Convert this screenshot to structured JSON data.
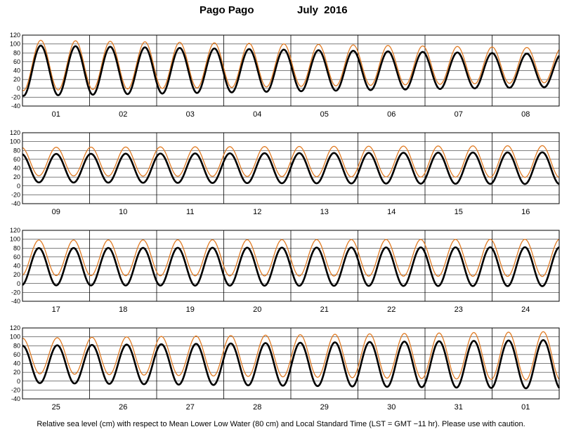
{
  "header": {
    "location": "Pago Pago",
    "period": "July   2016"
  },
  "footer_note": "Relative sea level (cm) with respect to Mean Lower Low Water (80 cm) and Local Standard Time (LST = GMT −11 hr). Please use with caution.",
  "colors": {
    "observed": "#000000",
    "predicted": "#e07b24",
    "grid": "#000000",
    "background": "#ffffff"
  },
  "chart_data": [
    {
      "type": "line",
      "x_tick_labels": [
        "01",
        "02",
        "03",
        "04",
        "05",
        "06",
        "07",
        "08"
      ],
      "y_ticks": [
        120,
        100,
        80,
        60,
        40,
        20,
        0,
        -20,
        -40
      ],
      "ylim": [
        -40,
        120
      ],
      "grid": true,
      "series": [
        {
          "mean": 40,
          "amp_start": 57,
          "amp_end": 37,
          "phase_deg": -100
        },
        {
          "mean": 52,
          "amp_start": 57,
          "amp_end": 39,
          "phase_deg": -100
        }
      ]
    },
    {
      "type": "line",
      "x_tick_labels": [
        "09",
        "10",
        "11",
        "12",
        "13",
        "14",
        "15",
        "16"
      ],
      "y_ticks": [
        120,
        100,
        80,
        60,
        40,
        20,
        0,
        -20,
        -40
      ],
      "ylim": [
        -40,
        120
      ],
      "grid": true,
      "series": [
        {
          "mean": 40,
          "amp_start": 32,
          "amp_end": 36,
          "phase_deg": 100
        },
        {
          "mean": 55,
          "amp_start": 32,
          "amp_end": 36,
          "phase_deg": 100
        }
      ]
    },
    {
      "type": "line",
      "x_tick_labels": [
        "17",
        "18",
        "19",
        "20",
        "21",
        "22",
        "23",
        "24"
      ],
      "y_ticks": [
        120,
        100,
        80,
        60,
        40,
        20,
        0,
        -20,
        -40
      ],
      "ylim": [
        -40,
        120
      ],
      "grid": true,
      "series": [
        {
          "mean": 38,
          "amp_start": 42,
          "amp_end": 44,
          "phase_deg": -80
        },
        {
          "mean": 58,
          "amp_start": 40,
          "amp_end": 42,
          "phase_deg": -80
        }
      ]
    },
    {
      "type": "line",
      "x_tick_labels": [
        "25",
        "26",
        "27",
        "28",
        "29",
        "30",
        "31",
        "01"
      ],
      "y_ticks": [
        120,
        100,
        80,
        60,
        40,
        20,
        0,
        -20,
        -40
      ],
      "ylim": [
        -40,
        120
      ],
      "grid": true,
      "series": [
        {
          "mean": 38,
          "amp_start": 42,
          "amp_end": 55,
          "phase_deg": 90
        },
        {
          "mean": 57,
          "amp_start": 40,
          "amp_end": 55,
          "phase_deg": 90
        }
      ]
    }
  ]
}
